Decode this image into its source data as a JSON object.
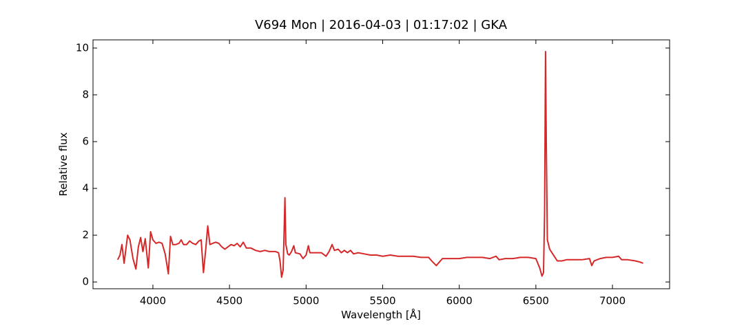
{
  "chart_data": {
    "type": "line",
    "title": "V694 Mon | 2016-04-03 | 01:17:02 | GKA",
    "xlabel": "Wavelength [Å]",
    "ylabel": "Relative flux",
    "xlim": [
      3609,
      7373
    ],
    "ylim": [
      -0.29,
      10.35
    ],
    "xticks": [
      4000,
      4500,
      5000,
      5500,
      6000,
      6500,
      7000
    ],
    "yticks": [
      0,
      2,
      4,
      6,
      8,
      10
    ],
    "grid": false,
    "series": [
      {
        "name": "V694 Mon",
        "color": "#d62728",
        "x": [
          3770,
          3785,
          3798,
          3812,
          3835,
          3850,
          3870,
          3889,
          3905,
          3920,
          3935,
          3950,
          3970,
          3985,
          4000,
          4020,
          4040,
          4060,
          4080,
          4101,
          4115,
          4130,
          4150,
          4170,
          4185,
          4200,
          4220,
          4240,
          4260,
          4280,
          4300,
          4315,
          4330,
          4345,
          4358,
          4372,
          4390,
          4410,
          4430,
          4450,
          4470,
          4490,
          4510,
          4530,
          4550,
          4570,
          4590,
          4610,
          4640,
          4670,
          4700,
          4730,
          4760,
          4800,
          4820,
          4830,
          4840,
          4850,
          4856,
          4862,
          4868,
          4880,
          4890,
          4905,
          4920,
          4930,
          4960,
          4980,
          5000,
          5015,
          5025,
          5060,
          5100,
          5130,
          5150,
          5170,
          5185,
          5210,
          5230,
          5250,
          5270,
          5290,
          5310,
          5340,
          5380,
          5420,
          5460,
          5500,
          5550,
          5600,
          5650,
          5700,
          5750,
          5800,
          5820,
          5850,
          5870,
          5890,
          5920,
          5970,
          6000,
          6050,
          6100,
          6150,
          6200,
          6240,
          6260,
          6300,
          6350,
          6400,
          6450,
          6500,
          6525,
          6540,
          6550,
          6557,
          6563,
          6568,
          6575,
          6590,
          6610,
          6640,
          6670,
          6700,
          6750,
          6800,
          6850,
          6865,
          6880,
          6920,
          6960,
          7000,
          7040,
          7060,
          7100,
          7150,
          7180,
          7200
        ],
        "values": [
          0.95,
          1.15,
          1.6,
          0.8,
          2.0,
          1.8,
          1.0,
          0.55,
          1.5,
          1.9,
          1.3,
          1.85,
          0.6,
          2.15,
          1.8,
          1.65,
          1.7,
          1.65,
          1.2,
          0.35,
          1.95,
          1.6,
          1.6,
          1.65,
          1.8,
          1.6,
          1.6,
          1.75,
          1.65,
          1.6,
          1.75,
          1.8,
          0.4,
          1.4,
          2.4,
          1.6,
          1.65,
          1.7,
          1.65,
          1.5,
          1.4,
          1.5,
          1.6,
          1.55,
          1.65,
          1.5,
          1.7,
          1.45,
          1.45,
          1.35,
          1.3,
          1.35,
          1.3,
          1.3,
          1.25,
          0.9,
          0.2,
          0.5,
          2.0,
          3.6,
          1.6,
          1.2,
          1.15,
          1.3,
          1.55,
          1.25,
          1.2,
          1.0,
          1.15,
          1.55,
          1.25,
          1.25,
          1.25,
          1.1,
          1.3,
          1.6,
          1.35,
          1.4,
          1.25,
          1.35,
          1.25,
          1.35,
          1.2,
          1.25,
          1.2,
          1.15,
          1.15,
          1.1,
          1.15,
          1.1,
          1.1,
          1.1,
          1.05,
          1.05,
          0.9,
          0.7,
          0.85,
          1.0,
          1.0,
          1.0,
          1.0,
          1.05,
          1.05,
          1.05,
          1.0,
          1.1,
          0.95,
          1.0,
          1.0,
          1.05,
          1.05,
          1.0,
          0.6,
          0.25,
          0.4,
          3.0,
          9.85,
          6.0,
          1.8,
          1.4,
          1.2,
          0.9,
          0.9,
          0.95,
          0.95,
          0.95,
          1.0,
          0.7,
          0.9,
          1.0,
          1.05,
          1.05,
          1.1,
          0.95,
          0.95,
          0.9,
          0.85,
          0.8
        ]
      }
    ]
  }
}
